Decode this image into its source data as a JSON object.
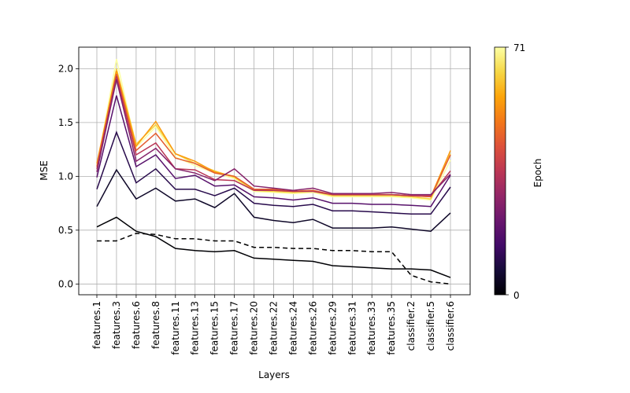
{
  "chart_data": {
    "type": "line",
    "title": "",
    "xlabel": "Layers",
    "ylabel": "MSE",
    "ylim": [
      -0.1,
      2.2
    ],
    "yticks": [
      0.0,
      0.5,
      1.0,
      1.5,
      2.0
    ],
    "ytick_labels": [
      "0.0",
      "0.5",
      "1.0",
      "1.5",
      "2.0"
    ],
    "grid": true,
    "categories": [
      "features.1",
      "features.3",
      "features.6",
      "features.8",
      "features.11",
      "features.13",
      "features.15",
      "features.17",
      "features.20",
      "features.22",
      "features.24",
      "features.26",
      "features.29",
      "features.31",
      "features.33",
      "features.35",
      "classifier.2",
      "classifier.5",
      "classifier.6"
    ],
    "colorbar": {
      "label": "Epoch",
      "min": 0,
      "max": 71,
      "min_label": "0",
      "max_label": "71",
      "colormap": "inferno"
    },
    "reference_series": {
      "style": "dashed",
      "color": "#000000",
      "values": [
        0.4,
        0.4,
        0.47,
        0.46,
        0.42,
        0.42,
        0.4,
        0.4,
        0.34,
        0.34,
        0.33,
        0.33,
        0.31,
        0.31,
        0.3,
        0.3,
        0.08,
        0.02,
        0.0
      ]
    },
    "series": [
      {
        "epoch": 0,
        "values": [
          0.53,
          0.62,
          0.49,
          0.44,
          0.33,
          0.31,
          0.3,
          0.31,
          0.24,
          0.23,
          0.22,
          0.21,
          0.17,
          0.16,
          0.15,
          0.14,
          0.14,
          0.13,
          0.06
        ]
      },
      {
        "epoch": 5,
        "values": [
          0.72,
          1.06,
          0.79,
          0.89,
          0.77,
          0.79,
          0.71,
          0.84,
          0.62,
          0.59,
          0.57,
          0.6,
          0.52,
          0.52,
          0.52,
          0.53,
          0.51,
          0.49,
          0.66
        ]
      },
      {
        "epoch": 10,
        "values": [
          0.88,
          1.41,
          0.94,
          1.07,
          0.88,
          0.88,
          0.82,
          0.89,
          0.75,
          0.73,
          0.72,
          0.74,
          0.68,
          0.68,
          0.67,
          0.66,
          0.65,
          0.65,
          0.9
        ]
      },
      {
        "epoch": 18,
        "values": [
          0.99,
          1.75,
          1.09,
          1.2,
          0.98,
          1.01,
          0.91,
          0.92,
          0.81,
          0.8,
          0.78,
          0.8,
          0.75,
          0.75,
          0.74,
          0.74,
          0.73,
          0.72,
          1.01
        ]
      },
      {
        "epoch": 26,
        "values": [
          1.04,
          1.9,
          1.14,
          1.26,
          1.07,
          1.03,
          0.96,
          1.07,
          0.91,
          0.89,
          0.87,
          0.89,
          0.84,
          0.84,
          0.84,
          0.85,
          0.83,
          0.83,
          1.02
        ]
      },
      {
        "epoch": 35,
        "values": [
          1.07,
          1.93,
          1.2,
          1.31,
          1.07,
          1.06,
          0.97,
          0.96,
          0.87,
          0.87,
          0.86,
          0.86,
          0.83,
          0.83,
          0.83,
          0.83,
          0.82,
          0.82,
          1.05
        ]
      },
      {
        "epoch": 45,
        "values": [
          1.09,
          1.95,
          1.24,
          1.4,
          1.17,
          1.12,
          1.03,
          1.0,
          0.88,
          0.88,
          0.86,
          0.87,
          0.83,
          0.83,
          0.83,
          0.83,
          0.82,
          0.81,
          1.2
        ]
      },
      {
        "epoch": 55,
        "values": [
          1.12,
          1.98,
          1.28,
          1.51,
          1.21,
          1.14,
          1.04,
          1.0,
          0.88,
          0.87,
          0.86,
          0.87,
          0.83,
          0.83,
          0.83,
          0.83,
          0.82,
          0.81,
          1.24
        ]
      },
      {
        "epoch": 63,
        "values": [
          1.1,
          2.0,
          1.3,
          1.48,
          1.21,
          1.12,
          1.05,
          0.99,
          0.87,
          0.86,
          0.85,
          0.86,
          0.82,
          0.82,
          0.82,
          0.82,
          0.81,
          0.79,
          1.21
        ]
      },
      {
        "epoch": 71,
        "values": [
          1.08,
          2.09,
          1.27,
          1.46,
          1.18,
          1.1,
          1.03,
          0.98,
          0.86,
          0.85,
          0.84,
          0.85,
          0.81,
          0.81,
          0.81,
          0.81,
          0.8,
          0.78,
          1.15
        ]
      }
    ]
  }
}
